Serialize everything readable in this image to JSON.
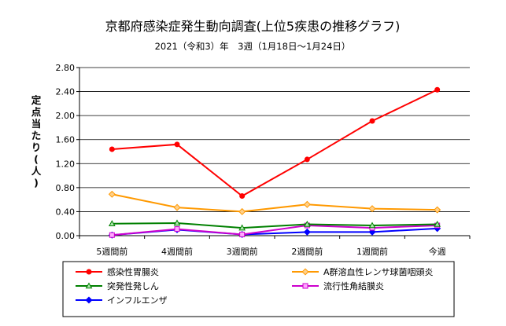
{
  "chart_data": {
    "type": "line",
    "title": "京都府感染症発生動向調査(上位5疾患の推移グラフ)",
    "subtitle": "2021（令和3）年　3週（1月18日〜1月24日）",
    "ylabel": "定点当たり(人)",
    "ylim": [
      0,
      2.8
    ],
    "yticks": [
      "0.00",
      "0.40",
      "0.80",
      "1.20",
      "1.60",
      "2.00",
      "2.40",
      "2.80"
    ],
    "grid": "horizontal",
    "legend_position": "bottom",
    "categories": [
      "5週間前",
      "4週間前",
      "3週間前",
      "2週間前",
      "1週間前",
      "今週"
    ],
    "series": [
      {
        "name": "感染性胃腸炎",
        "color": "#ff0000",
        "marker": "circle",
        "values": [
          1.44,
          1.52,
          0.66,
          1.27,
          1.91,
          2.43
        ]
      },
      {
        "name": "A群溶血性レンサ球菌咽頭炎",
        "color": "#ff9900",
        "marker": "diamond",
        "values": [
          0.69,
          0.47,
          0.4,
          0.52,
          0.45,
          0.43
        ]
      },
      {
        "name": "突発性発しん",
        "color": "#008000",
        "marker": "triangle",
        "values": [
          0.2,
          0.21,
          0.13,
          0.19,
          0.17,
          0.19
        ]
      },
      {
        "name": "流行性角結膜炎",
        "color": "#cc00cc",
        "marker": "square",
        "values": [
          0.01,
          0.11,
          0.02,
          0.17,
          0.13,
          0.17
        ]
      },
      {
        "name": "インフルエンザ",
        "color": "#0000ff",
        "marker": "diamond",
        "values": [
          0.01,
          0.1,
          0.02,
          0.06,
          0.06,
          0.12
        ]
      }
    ]
  }
}
